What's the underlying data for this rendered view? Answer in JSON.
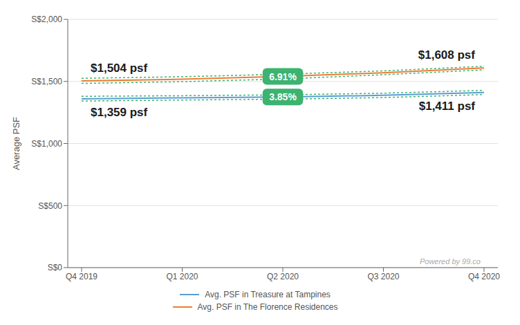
{
  "chart_data": {
    "type": "line",
    "categories": [
      "Q4 2019",
      "Q1 2020",
      "Q2 2020",
      "Q3 2020",
      "Q4 2020"
    ],
    "series": [
      {
        "name": "Avg. PSF in Treasure at Tampines",
        "color": "#5b9bd5",
        "line_style": "solid",
        "values": [
          1359,
          1368,
          1374,
          1388,
          1411
        ]
      },
      {
        "name": "Avg. PSF in The Florence Residences",
        "color": "#ed7d31",
        "line_style": "solid",
        "values": [
          1504,
          1518,
          1540,
          1570,
          1608
        ]
      },
      {
        "color": "#3cb371",
        "line_style": "dotted",
        "values": [
          1525,
          1538,
          1558,
          1585,
          1622
        ]
      },
      {
        "color": "#3cb371",
        "line_style": "dotted",
        "values": [
          1484,
          1498,
          1520,
          1554,
          1593
        ]
      },
      {
        "color": "#3cb371",
        "line_style": "dotted",
        "values": [
          1380,
          1385,
          1392,
          1405,
          1428
        ]
      },
      {
        "color": "#3cb371",
        "line_style": "dotted",
        "values": [
          1342,
          1350,
          1357,
          1370,
          1394
        ]
      }
    ],
    "ylabel": "Average PSF",
    "ylim": [
      0,
      2000
    ],
    "yticks": [
      {
        "value": 0,
        "label": "S$0"
      },
      {
        "value": 500,
        "label": "S$500"
      },
      {
        "value": 1000,
        "label": "S$1,000"
      },
      {
        "value": 1500,
        "label": "S$1,500"
      },
      {
        "value": 2000,
        "label": "S$2,000"
      }
    ],
    "grid": true,
    "legend": "bottom",
    "annotations": [
      {
        "text": "$1,504 psf",
        "series": "Avg. PSF in The Florence Residences",
        "category": "Q4 2019"
      },
      {
        "text": "$1,359 psf",
        "series": "Avg. PSF in Treasure at Tampines",
        "category": "Q4 2019"
      },
      {
        "text": "$1,608 psf",
        "series": "Avg. PSF in The Florence Residences",
        "category": "Q4 2020"
      },
      {
        "text": "$1,411 psf",
        "series": "Avg. PSF in Treasure at Tampines",
        "category": "Q4 2020"
      }
    ],
    "badges": [
      {
        "text": "6.91%",
        "series": "Avg. PSF in The Florence Residences",
        "category": "Q2 2020",
        "color": "#3cb371",
        "text_color": "#ffffff"
      },
      {
        "text": "3.85%",
        "series": "Avg. PSF in Treasure at Tampines",
        "category": "Q2 2020",
        "color": "#3cb371",
        "text_color": "#ffffff"
      }
    ],
    "watermark": "Powered by 99.co"
  }
}
